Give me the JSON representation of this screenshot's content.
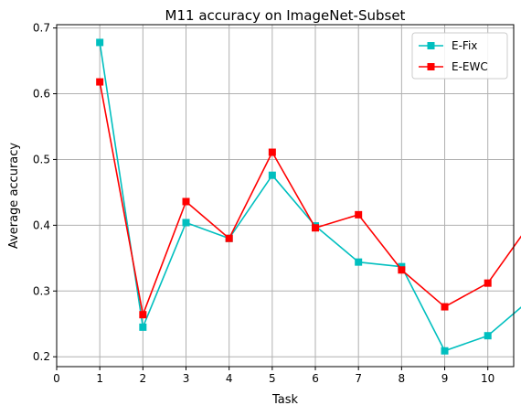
{
  "chart_data": {
    "type": "line",
    "title": "M11 accuracy on ImageNet-Subset",
    "xlabel": "Task",
    "ylabel": "Average accuracy",
    "xlim": [
      0,
      10.6
    ],
    "ylim": [
      0.185,
      0.705
    ],
    "x_ticks": [
      0,
      1,
      2,
      3,
      4,
      5,
      6,
      7,
      8,
      9,
      10
    ],
    "y_ticks": [
      0.2,
      0.3,
      0.4,
      0.5,
      0.6,
      0.7
    ],
    "y_tick_labels": [
      "0.2",
      "0.3",
      "0.4",
      "0.5",
      "0.6",
      "0.7"
    ],
    "grid": true,
    "legend_position": "top-right",
    "x": [
      1,
      2,
      3,
      4,
      5,
      6,
      7,
      8,
      9,
      10,
      11
    ],
    "series": [
      {
        "name": "E-Fix",
        "color": "#00bfbf",
        "marker": "square",
        "values": [
          0.678,
          0.245,
          0.404,
          0.38,
          0.476,
          0.399,
          0.344,
          0.337,
          0.209,
          0.232,
          0.288
        ]
      },
      {
        "name": "E-EWC",
        "color": "#ff0000",
        "marker": "square",
        "values": [
          0.618,
          0.264,
          0.436,
          0.38,
          0.511,
          0.396,
          0.416,
          0.332,
          0.276,
          0.312,
          0.404
        ]
      }
    ]
  }
}
